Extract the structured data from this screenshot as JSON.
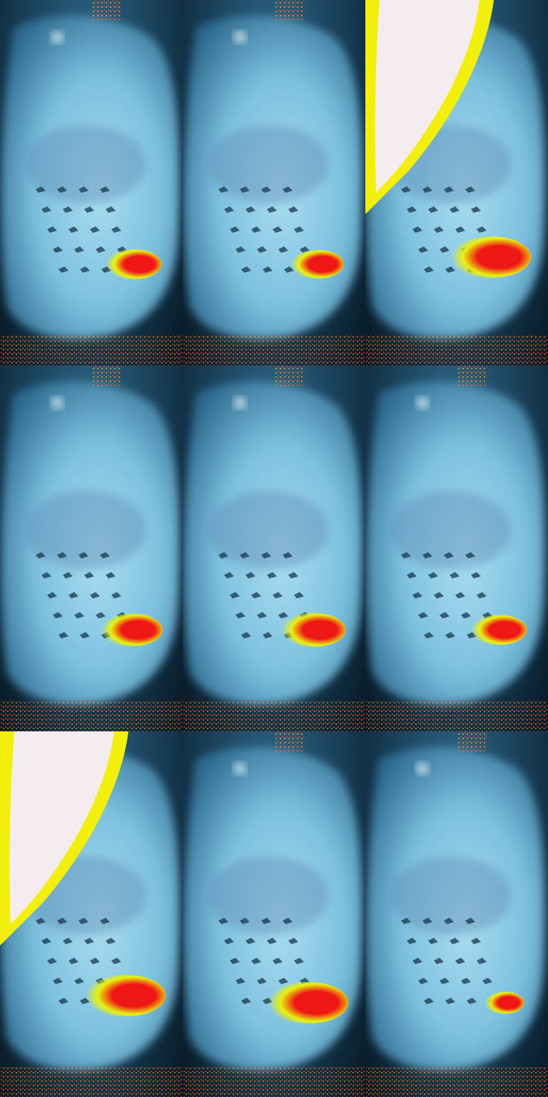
{
  "grid": {
    "rows": 3,
    "cols": 3
  },
  "colors": {
    "background_dark": "#071722",
    "body_dark": "#2d6a8f",
    "body_light": "#7cc0de",
    "body_highlight": "#a9ddf0",
    "inner_lobe": "#5f8db6",
    "speck": "#17384d",
    "glare_white": "#f4ecef",
    "glare_yellow": "#f2f00a",
    "hot_red": "#ef1616",
    "hot_yellow": "#e8f20c"
  },
  "tiles": [
    {
      "name": "tile-r1c1",
      "glare": false,
      "hotspot_level": 0.5
    },
    {
      "name": "tile-r1c2",
      "glare": false,
      "hotspot_level": 0.45
    },
    {
      "name": "tile-r1c3",
      "glare": true,
      "hotspot_level": 0.95
    },
    {
      "name": "tile-r2c1",
      "glare": false,
      "hotspot_level": 0.6
    },
    {
      "name": "tile-r2c2",
      "glare": false,
      "hotspot_level": 0.65
    },
    {
      "name": "tile-r2c3",
      "glare": false,
      "hotspot_level": 0.5
    },
    {
      "name": "tile-r3c1",
      "glare": true,
      "hotspot_level": 0.95
    },
    {
      "name": "tile-r3c2",
      "glare": false,
      "hotspot_level": 0.95
    },
    {
      "name": "tile-r3c3",
      "glare": false,
      "hotspot_level": 0.2
    }
  ]
}
